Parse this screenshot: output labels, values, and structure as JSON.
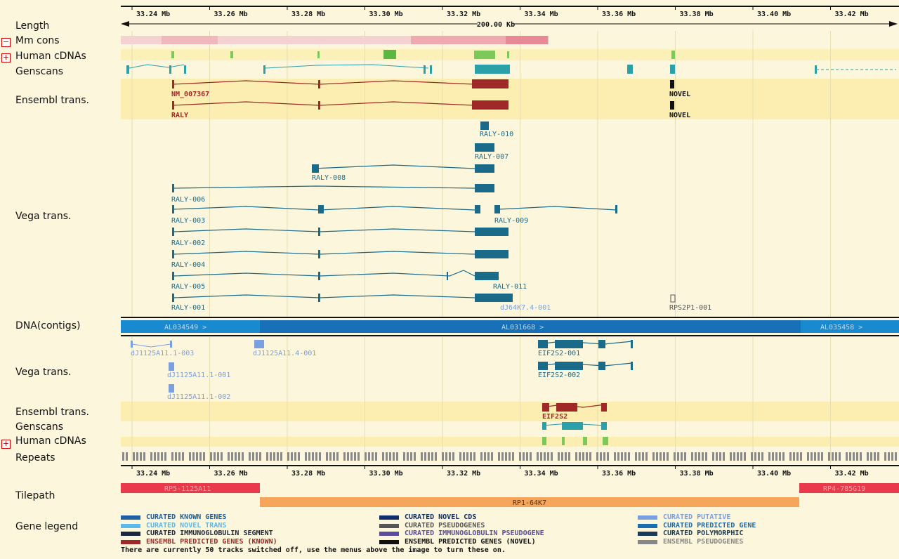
{
  "labels": {
    "length": "Length",
    "mm_cons": "Mm cons",
    "human_cdnas_top": "Human cDNAs",
    "genscans_top": "Genscans",
    "ensembl_top": "Ensembl trans.",
    "vega_top": "Vega trans.",
    "dna_contigs": "DNA(contigs)",
    "vega_bottom": "Vega trans.",
    "ensembl_bottom": "Ensembl trans.",
    "genscans_bottom": "Genscans",
    "human_cdnas_bottom": "Human cDNAs",
    "repeats": "Repeats",
    "tilepath": "Tilepath",
    "gene_legend": "Gene legend"
  },
  "toggles": {
    "minus": "−",
    "plus": "+"
  },
  "axis_ticks": [
    "33.24 Mb",
    "33.26 Mb",
    "33.28 Mb",
    "33.30 Mb",
    "33.32 Mb",
    "33.34 Mb",
    "33.36 Mb",
    "33.38 Mb",
    "33.40 Mb",
    "33.42 Mb"
  ],
  "axis_positions": [
    33.24,
    33.26,
    33.28,
    33.3,
    33.32,
    33.34,
    33.36,
    33.38,
    33.4,
    33.42
  ],
  "length_label": "200.00 Kb",
  "ensembl_top": [
    "NM_007367",
    "RALY",
    "NOVEL",
    "NOVEL"
  ],
  "vega_top": [
    "RALY-010",
    "RALY-007",
    "RALY-008",
    "RALY-006",
    "RALY-003",
    "RALY-009",
    "RALY-002",
    "RALY-004",
    "RALY-005",
    "RALY-011",
    "RALY-001",
    "dJ64K7.4-001",
    "RPS2P1-001"
  ],
  "contigs": [
    "AL034549 >",
    "AL031668 >",
    "AL035458 >"
  ],
  "vega_bottom": [
    "dJ1125A11.1-003",
    "dJ1125A11.4-001",
    "dJ1125A11.1-001",
    "dJ1125A11.1-002",
    "EIF2S2-001",
    "EIF2S2-002"
  ],
  "ensembl_bottom": [
    "EIF2S2"
  ],
  "tilepath": [
    "RP5-1125A11",
    "RP1-64K7",
    "RP4-785G19"
  ],
  "legend": [
    {
      "text": "CURATED KNOWN GENES",
      "color": "#2060a0"
    },
    {
      "text": "CURATED NOVEL CDS",
      "color": "#0d2d6b"
    },
    {
      "text": "CURATED PUTATIVE",
      "color": "#7aa0e0"
    },
    {
      "text": "CURATED NOVEL TRANS",
      "color": "#5cb8e8"
    },
    {
      "text": "CURATED PSEUDOGENES",
      "color": "#555555"
    },
    {
      "text": "CURATED PREDICTED GENE",
      "color": "#1c6cb0"
    },
    {
      "text": "CURATED IMMUNOGLOBULIN SEGMENT",
      "color": "#1a2740"
    },
    {
      "text": "CURATED IMMUNOGLOBULIN PSEUDOGENE",
      "color": "#5a4aa0"
    },
    {
      "text": "CURATED POLYMORPHIC",
      "color": "#1a3a5a"
    },
    {
      "text": "ENSEMBL PREDICTED GENES (KNOWN)",
      "color": "#a02828"
    },
    {
      "text": "ENSEMBL PREDICTED GENES (NOVEL)",
      "color": "#111111"
    },
    {
      "text": "ENSEMBL PSEUDOGENES",
      "color": "#888888"
    }
  ],
  "footer": "There are currently 50 tracks switched off, use the menus above the image to turn these on.",
  "colors": {
    "vega": "#1a6a8a",
    "ensembl": "#a02828",
    "genscan": "#2aa0a8",
    "cdna": "#7cc85a",
    "contig": "#1a8ad0",
    "clone_red": "#e83a4a",
    "clone_orange": "#f5a65a"
  }
}
